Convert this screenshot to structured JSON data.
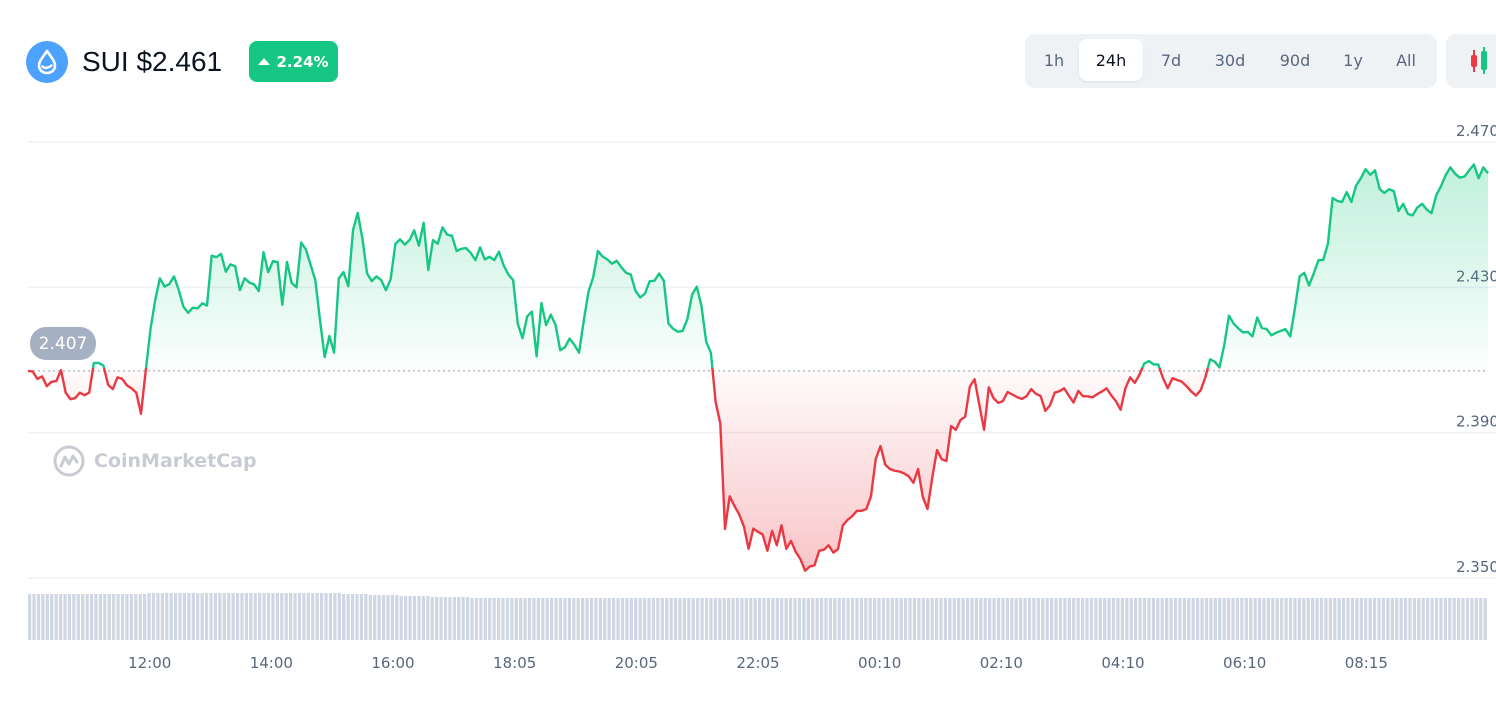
{
  "header": {
    "coin_icon": "sui-drop-icon",
    "title": "SUI $2.461",
    "change": "2.24%",
    "change_direction": "up",
    "change_color": "#16c784"
  },
  "ranges": [
    "1h",
    "24h",
    "7d",
    "30d",
    "90d",
    "1y",
    "All"
  ],
  "active_range": "24h",
  "chart_toggle_icon": "candlestick-icon",
  "watermark": "CoinMarketCap",
  "colors": {
    "up": "#16c784",
    "down": "#ea3943",
    "grid": "#eff2f5",
    "volume": "#cfd6e4"
  },
  "chart_data": {
    "type": "area",
    "reference_value": 2.407,
    "reference_label": "2.407",
    "y_ticks": [
      "2.470",
      "2.430",
      "2.390",
      "2.350"
    ],
    "y_tick_values": [
      2.47,
      2.43,
      2.39,
      2.35
    ],
    "ylim": [
      2.35,
      2.47
    ],
    "x_ticks": [
      "12:00",
      "14:00",
      "16:00",
      "18:05",
      "20:05",
      "22:05",
      "00:10",
      "02:10",
      "04:10",
      "06:10",
      "08:15"
    ],
    "x_tick_index": [
      20,
      40,
      60,
      80,
      100,
      120,
      140,
      160,
      180,
      200,
      220
    ],
    "grid": true,
    "values": [
      2.407,
      2.4068,
      2.4048,
      2.4055,
      2.4028,
      2.404,
      2.4042,
      2.4072,
      2.401,
      2.3992,
      2.3995,
      2.401,
      2.4003,
      2.401,
      2.4092,
      2.4092,
      2.4085,
      2.4032,
      2.402,
      2.4052,
      2.4048,
      2.403,
      2.4022,
      2.401,
      2.3952,
      2.407,
      2.4185,
      2.4265,
      2.4325,
      2.4302,
      2.4309,
      2.433,
      2.4293,
      2.4247,
      2.423,
      2.4244,
      2.4242,
      2.4256,
      2.425,
      2.4387,
      2.4383,
      2.4392,
      2.4343,
      2.4363,
      2.4358,
      2.4292,
      2.4325,
      2.4313,
      2.4308,
      2.429,
      2.4397,
      2.4342,
      2.4372,
      2.437,
      2.4252,
      2.437,
      2.4312,
      2.43,
      2.4423,
      2.4404,
      2.4362,
      2.432,
      2.421,
      2.4108,
      2.4166,
      2.412,
      2.4325,
      2.4342,
      2.4303,
      2.4457,
      2.4505,
      2.4435,
      2.4338,
      2.4317,
      2.433,
      2.432,
      2.4292,
      2.4322,
      2.442,
      2.4432,
      2.4418,
      2.443,
      2.4457,
      2.4415,
      2.4478,
      2.4348,
      2.443,
      2.442,
      2.4465,
      2.4445,
      2.4442,
      2.44,
      2.4406,
      2.4408,
      2.4395,
      2.4375,
      2.441,
      2.4377,
      2.4384,
      2.4375,
      2.4398,
      2.436,
      2.4335,
      2.432,
      2.42,
      2.416,
      2.422,
      2.4233,
      2.411,
      2.4257,
      2.4196,
      2.4225,
      2.4197,
      2.4127,
      2.4135,
      2.4159,
      2.4142,
      2.412,
      2.4207,
      2.4288,
      2.4328,
      2.44,
      2.4385,
      2.4377,
      2.4365,
      2.4373,
      2.4355,
      2.434,
      2.4335,
      2.429,
      2.4272,
      2.4283,
      2.4317,
      2.4318,
      2.4338,
      2.4318,
      2.42,
      2.4186,
      2.4178,
      2.418,
      2.4213,
      2.428,
      2.4302,
      2.4248,
      2.415,
      2.412,
      2.3985,
      2.3925,
      2.3635,
      2.3725,
      2.3698,
      2.3675,
      2.3642,
      2.358,
      2.3636,
      2.3627,
      2.362,
      2.3575,
      2.363,
      2.359,
      2.3645,
      2.358,
      2.3602,
      2.3572,
      2.3552,
      2.352,
      2.3532,
      2.3535,
      2.3575,
      2.3578,
      2.359,
      2.357,
      2.358,
      2.3645,
      2.366,
      2.367,
      2.3685,
      2.3685,
      2.369,
      2.3725,
      2.3827,
      2.3863,
      2.3812,
      2.38,
      2.3795,
      2.3793,
      2.3788,
      2.378,
      2.3762,
      2.38,
      2.3723,
      2.369,
      2.3777,
      2.3852,
      2.3827,
      2.3822,
      2.3918,
      2.3908,
      2.3935,
      2.3944,
      2.4027,
      2.4047,
      2.3975,
      2.3908,
      2.4025,
      2.3995,
      2.3982,
      2.3987,
      2.4012,
      2.4005,
      2.3998,
      2.3993,
      2.4,
      2.402,
      2.4007,
      2.4001,
      2.396,
      2.3975,
      2.401,
      2.4014,
      2.4022,
      2.4002,
      2.3983,
      2.4015,
      2.4,
      2.4,
      2.3997,
      2.4006,
      2.4013,
      2.4022,
      2.4003,
      2.3987,
      2.3963,
      2.4022,
      2.4052,
      2.4037,
      2.406,
      2.409,
      2.4097,
      2.4088,
      2.4088,
      2.405,
      2.4022,
      2.405,
      2.4045,
      2.404,
      2.4028,
      2.4013,
      2.4002,
      2.4017,
      2.4053,
      2.4102,
      2.4095,
      2.408,
      2.4142,
      2.4222,
      2.42,
      2.4187,
      2.4176,
      2.4177,
      2.4165,
      2.4217,
      2.4188,
      2.4185,
      2.4168,
      2.4175,
      2.418,
      2.4185,
      2.4165,
      2.4242,
      2.433,
      2.434,
      2.4305,
      2.4338,
      2.4375,
      2.4375,
      2.442,
      2.4546,
      2.4538,
      2.4535,
      2.4562,
      2.4535,
      2.458,
      2.46,
      2.4625,
      2.461,
      2.4622,
      2.457,
      2.456,
      2.457,
      2.4565,
      2.451,
      2.453,
      2.4502,
      2.4498,
      2.452,
      2.453,
      2.4514,
      2.4504,
      2.4553,
      2.4578,
      2.4608,
      2.463,
      2.4613,
      2.4602,
      2.4605,
      2.4622,
      2.4638,
      2.46,
      2.463,
      2.4614
    ]
  },
  "volume_bars": [
    46,
    46,
    46,
    46,
    46,
    46,
    46,
    46,
    46,
    46,
    46,
    46,
    46,
    46,
    46,
    46,
    46,
    46,
    46,
    46,
    46,
    46,
    46,
    46,
    46,
    46,
    46,
    47,
    47,
    47,
    47,
    47,
    47,
    47,
    47,
    47,
    47,
    47,
    47,
    47,
    47,
    47,
    47,
    47,
    47,
    47,
    47,
    47,
    47,
    47,
    47,
    47,
    47,
    47,
    47,
    47,
    47,
    47,
    47,
    47,
    47,
    47,
    47,
    47,
    47,
    47,
    47,
    47,
    47,
    47,
    47,
    46,
    46,
    46,
    46,
    46,
    46,
    45,
    45,
    45,
    45,
    45,
    45,
    45,
    44,
    44,
    44,
    44,
    44,
    44,
    44,
    43,
    43,
    43,
    43,
    43,
    43,
    43,
    43,
    43,
    42,
    42,
    42,
    42,
    42,
    42,
    42,
    42,
    42,
    42,
    42,
    42,
    42,
    42,
    42,
    42,
    42,
    42,
    42,
    42,
    42,
    42,
    42,
    42,
    42,
    42,
    42,
    42,
    42,
    42,
    42,
    42,
    42,
    42,
    42,
    42,
    42,
    42,
    42,
    42,
    42,
    42,
    42,
    42,
    42,
    42,
    42,
    42,
    42,
    42,
    42,
    42,
    42,
    42,
    42,
    42,
    42,
    42,
    42,
    42,
    42,
    42,
    42,
    42,
    42,
    42,
    42,
    42,
    42,
    42,
    42,
    42,
    42,
    42,
    42,
    42,
    42,
    42,
    42,
    42,
    42,
    42,
    42,
    42,
    42,
    42,
    42,
    42,
    42,
    42,
    42,
    42,
    42,
    42,
    42,
    42,
    42,
    42,
    42,
    42,
    42,
    42,
    42,
    42,
    42,
    42,
    42,
    42,
    42,
    42,
    42,
    42,
    42,
    42,
    42,
    42,
    42,
    42,
    42,
    42,
    42,
    42,
    42,
    42,
    42,
    42,
    42,
    42,
    42,
    42,
    42,
    42,
    42,
    42,
    42,
    42,
    42,
    42,
    42,
    42,
    42,
    42,
    42,
    42,
    42,
    42,
    42,
    42,
    42,
    42,
    42,
    42,
    42,
    42,
    42,
    42,
    42,
    42,
    42,
    42,
    42,
    42,
    42,
    42,
    42,
    42,
    42,
    42,
    42,
    42,
    42,
    42,
    42,
    42,
    42,
    42,
    42,
    42,
    42,
    42,
    42,
    42,
    42,
    42,
    42,
    42,
    42,
    42,
    42,
    42,
    42,
    42,
    42,
    42,
    42,
    42,
    42,
    42,
    42,
    42,
    42,
    42,
    42,
    42,
    42,
    42,
    42,
    42,
    42,
    42,
    42,
    42,
    42,
    42,
    42,
    42,
    42,
    42,
    42,
    42,
    42,
    42,
    42,
    42,
    42,
    42,
    42,
    42,
    42,
    42
  ]
}
